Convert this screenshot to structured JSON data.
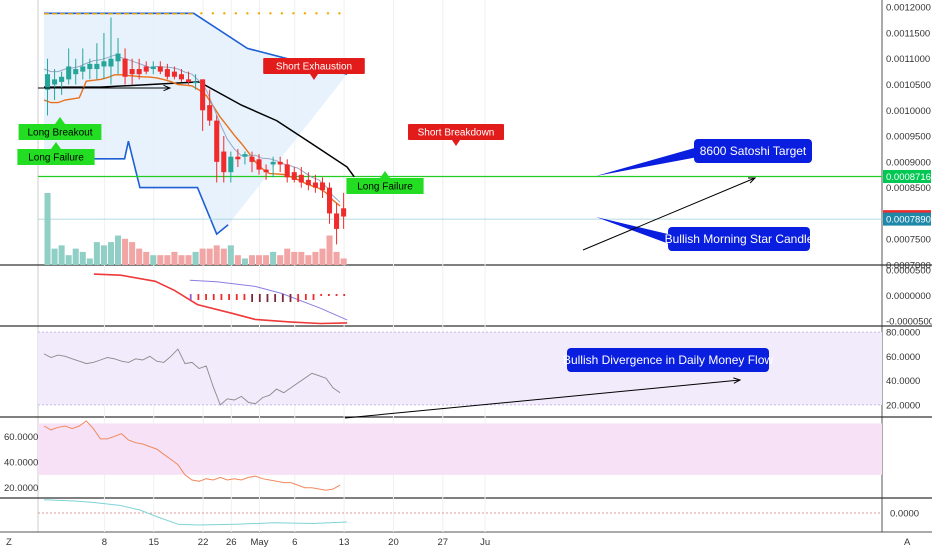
{
  "chart_data": {
    "type": "candlestick",
    "price_axis": {
      "ticks": [
        "0.0012000",
        "0.0011500",
        "0.0011000",
        "0.0010500",
        "0.0010000",
        "0.0009500",
        "0.0009000",
        "0.0008500",
        "0.0007500",
        "0.0007000"
      ],
      "tick_values": [
        0.0012,
        0.00115,
        0.0011,
        0.00105,
        0.001,
        0.00095,
        0.0009,
        0.00085,
        0.00075,
        0.0007
      ],
      "ylim": [
        0.0007,
        0.00121
      ],
      "badges": [
        {
          "text": "0.0008716",
          "value": 0.0008716,
          "color": "#00c853"
        },
        {
          "text": "0.0007938",
          "value": 0.0007938,
          "color": "#ef2b2b"
        },
        {
          "text": "0.0007890",
          "value": 0.000789,
          "color": "#1e88a8"
        }
      ]
    },
    "x_axis": {
      "ticks": [
        "8",
        "15",
        "22",
        "26",
        "May",
        "6",
        "13",
        "20",
        "27",
        "Ju"
      ],
      "tick_index": [
        8,
        15,
        22,
        26,
        30,
        35,
        42,
        49,
        56,
        62
      ]
    },
    "candles": [
      {
        "o": 0.00104,
        "h": 0.0011,
        "l": 0.00099,
        "c": 0.00107
      },
      {
        "o": 0.00105,
        "h": 0.00108,
        "l": 0.00102,
        "c": 0.00106
      },
      {
        "o": 0.001055,
        "h": 0.001075,
        "l": 0.00103,
        "c": 0.001065
      },
      {
        "o": 0.00106,
        "h": 0.00112,
        "l": 0.00105,
        "c": 0.001085
      },
      {
        "o": 0.00107,
        "h": 0.0011,
        "l": 0.00105,
        "c": 0.00108
      },
      {
        "o": 0.001075,
        "h": 0.00112,
        "l": 0.00106,
        "c": 0.001085
      },
      {
        "o": 0.00108,
        "h": 0.0011,
        "l": 0.00106,
        "c": 0.00109
      },
      {
        "o": 0.00108,
        "h": 0.00113,
        "l": 0.00106,
        "c": 0.00109
      },
      {
        "o": 0.001085,
        "h": 0.00115,
        "l": 0.00106,
        "c": 0.001095
      },
      {
        "o": 0.001085,
        "h": 0.00118,
        "l": 0.00105,
        "c": 0.0011
      },
      {
        "o": 0.001095,
        "h": 0.00114,
        "l": 0.00107,
        "c": 0.00111
      },
      {
        "o": 0.0011,
        "h": 0.00112,
        "l": 0.00105,
        "c": 0.001065
      },
      {
        "o": 0.00108,
        "h": 0.0011,
        "l": 0.00105,
        "c": 0.00107
      },
      {
        "o": 0.00108,
        "h": 0.0011,
        "l": 0.00106,
        "c": 0.00107
      },
      {
        "o": 0.001085,
        "h": 0.001095,
        "l": 0.00107,
        "c": 0.001075
      },
      {
        "o": 0.00108,
        "h": 0.001095,
        "l": 0.00107,
        "c": 0.001085
      },
      {
        "o": 0.001085,
        "h": 0.001095,
        "l": 0.00107,
        "c": 0.001075
      },
      {
        "o": 0.00108,
        "h": 0.00109,
        "l": 0.00106,
        "c": 0.001065
      },
      {
        "o": 0.001075,
        "h": 0.001085,
        "l": 0.00106,
        "c": 0.001065
      },
      {
        "o": 0.00107,
        "h": 0.00108,
        "l": 0.001055,
        "c": 0.00106
      },
      {
        "o": 0.00106,
        "h": 0.001075,
        "l": 0.00105,
        "c": 0.001055
      },
      {
        "o": 0.001055,
        "h": 0.00107,
        "l": 0.00104,
        "c": 0.001055
      },
      {
        "o": 0.00106,
        "h": 0.00106,
        "l": 0.00096,
        "c": 0.001
      },
      {
        "o": 0.00101,
        "h": 0.00104,
        "l": 0.00097,
        "c": 0.00098
      },
      {
        "o": 0.00098,
        "h": 0.00099,
        "l": 0.00086,
        "c": 0.0009
      },
      {
        "o": 0.00092,
        "h": 0.00095,
        "l": 0.00086,
        "c": 0.00088
      },
      {
        "o": 0.00088,
        "h": 0.00092,
        "l": 0.00086,
        "c": 0.00091
      },
      {
        "o": 0.00091,
        "h": 0.000925,
        "l": 0.00089,
        "c": 0.000905
      },
      {
        "o": 0.00091,
        "h": 0.00092,
        "l": 0.000895,
        "c": 0.000915
      },
      {
        "o": 0.00091,
        "h": 0.00092,
        "l": 0.00088,
        "c": 0.0009
      },
      {
        "o": 0.000905,
        "h": 0.000915,
        "l": 0.000875,
        "c": 0.000885
      },
      {
        "o": 0.000885,
        "h": 0.000895,
        "l": 0.000865,
        "c": 0.00088
      },
      {
        "o": 0.000895,
        "h": 0.00091,
        "l": 0.00087,
        "c": 0.0009
      },
      {
        "o": 0.0009,
        "h": 0.00091,
        "l": 0.00088,
        "c": 0.000895
      },
      {
        "o": 0.000895,
        "h": 0.000905,
        "l": 0.00086,
        "c": 0.00087
      },
      {
        "o": 0.00088,
        "h": 0.00089,
        "l": 0.00086,
        "c": 0.000865
      },
      {
        "o": 0.000875,
        "h": 0.00089,
        "l": 0.00085,
        "c": 0.00086
      },
      {
        "o": 0.000865,
        "h": 0.00088,
        "l": 0.000845,
        "c": 0.000855
      },
      {
        "o": 0.00086,
        "h": 0.000875,
        "l": 0.00084,
        "c": 0.00085
      },
      {
        "o": 0.00086,
        "h": 0.00087,
        "l": 0.00083,
        "c": 0.000845
      },
      {
        "o": 0.00085,
        "h": 0.00086,
        "l": 0.00078,
        "c": 0.0008
      },
      {
        "o": 0.0008,
        "h": 0.00082,
        "l": 0.00074,
        "c": 0.00077
      },
      {
        "o": 0.00081,
        "h": 0.00084,
        "l": 0.00077,
        "c": 0.000794
      }
    ],
    "volume": [
      0.22,
      0.05,
      0.06,
      0.03,
      0.05,
      0.04,
      0.02,
      0.07,
      0.06,
      0.07,
      0.09,
      0.08,
      0.07,
      0.05,
      0.04,
      0.03,
      0.03,
      0.03,
      0.04,
      0.03,
      0.03,
      0.04,
      0.05,
      0.05,
      0.06,
      0.05,
      0.06,
      0.03,
      0.02,
      0.03,
      0.03,
      0.03,
      0.04,
      0.03,
      0.05,
      0.04,
      0.04,
      0.03,
      0.04,
      0.05,
      0.09,
      0.04,
      0.02
    ],
    "annotations": [
      {
        "text": "Short Exhaustion",
        "style": "red-label"
      },
      {
        "text": "Short Breakdown",
        "style": "red-label"
      },
      {
        "text": "Long Breakout",
        "style": "green-label"
      },
      {
        "text": "Long Failure",
        "style": "green-label"
      },
      {
        "text": "Long Failure",
        "style": "green-label"
      },
      {
        "text": "8600 Satoshi Target",
        "style": "blue-callout"
      },
      {
        "text": "Bullish Morning Star Candle",
        "style": "blue-callout"
      },
      {
        "text": "Bullish Divergence in Daily Money Flow",
        "style": "blue-callout"
      }
    ],
    "target_line": 0.0008716,
    "macd_axis": {
      "ticks": [
        "0.0000500",
        "0.0000000",
        "-0.0000500"
      ],
      "tick_values": [
        5e-05,
        0,
        -5e-05
      ],
      "ylim": [
        -6e-05,
        6e-05
      ]
    },
    "mfi_axis": {
      "ticks": [
        "80.0000",
        "60.0000",
        "40.0000",
        "20.0000"
      ],
      "tick_values": [
        80,
        60,
        40,
        20
      ],
      "ylim": [
        10,
        85
      ],
      "band": [
        20,
        80
      ]
    },
    "rsi_axis": {
      "ticks": [
        "60.0000",
        "40.0000",
        "20.0000"
      ],
      "tick_values": [
        60,
        40,
        20
      ],
      "ylim": [
        12,
        75
      ],
      "band": [
        30,
        70
      ]
    },
    "osc_axis": {
      "ticks": [
        "0.0000"
      ],
      "tick_values": [
        0
      ],
      "ylim": [
        -1,
        1
      ]
    },
    "mfi_values": [
      62,
      59,
      61,
      60,
      58,
      56,
      54,
      55,
      57,
      59,
      58,
      56,
      55,
      58,
      57,
      60,
      56,
      55,
      60,
      66,
      54,
      55,
      50,
      52,
      35,
      20,
      25,
      24,
      27,
      22,
      21,
      26,
      28,
      33,
      30,
      34,
      38,
      42,
      46,
      44,
      42,
      34,
      30
    ],
    "rsi_values": [
      68,
      65,
      67,
      68,
      66,
      68,
      72,
      66,
      58,
      58,
      60,
      62,
      57,
      55,
      54,
      52,
      50,
      46,
      42,
      38,
      30,
      26,
      25,
      27,
      26,
      28,
      26,
      27,
      26,
      28,
      29,
      27,
      26,
      25,
      24,
      24,
      22,
      20,
      20,
      19,
      18,
      19,
      22
    ]
  },
  "corner_labels": {
    "left": "Z",
    "right": "A"
  }
}
